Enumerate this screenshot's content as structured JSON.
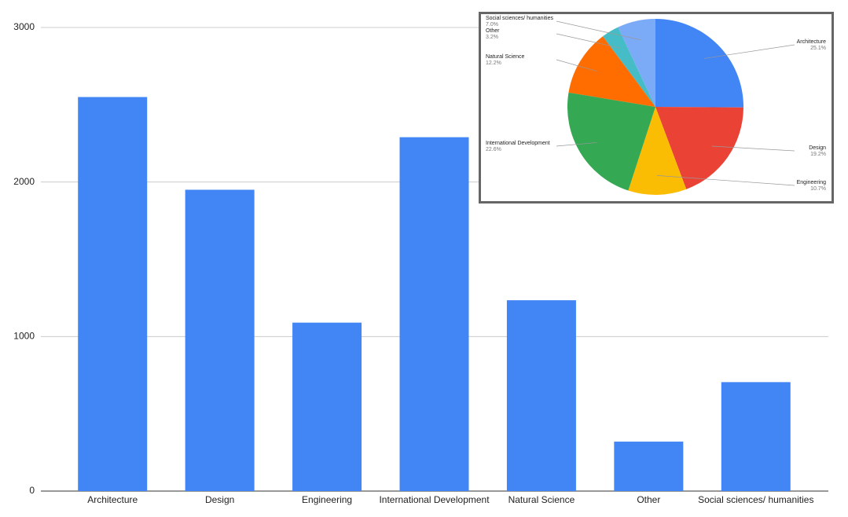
{
  "chart_data": [
    {
      "type": "bar",
      "categories": [
        "Architecture",
        "Design",
        "Engineering",
        "International Development",
        "Natural Science",
        "Other",
        "Social sciences/ humanities"
      ],
      "values": [
        2550,
        1950,
        1090,
        2290,
        1235,
        320,
        705
      ],
      "color": "#4285f4",
      "ylim": [
        0,
        3000
      ],
      "yticks": [
        0,
        1000,
        2000,
        3000
      ],
      "grid": true
    },
    {
      "type": "pie",
      "categories": [
        "Architecture",
        "Design",
        "Engineering",
        "International Development",
        "Natural Science",
        "Other",
        "Social sciences/ humanities"
      ],
      "values": [
        25.1,
        19.2,
        10.7,
        22.6,
        12.2,
        3.2,
        7.0
      ],
      "value_labels": [
        "25.1%",
        "19.2%",
        "10.7%",
        "22.6%",
        "12.2%",
        "3.2%",
        "7.0%"
      ],
      "colors": [
        "#4285f4",
        "#ea4335",
        "#fbbc04",
        "#34a853",
        "#ff6d01",
        "#46bdc6",
        "#7baaf7"
      ]
    }
  ]
}
